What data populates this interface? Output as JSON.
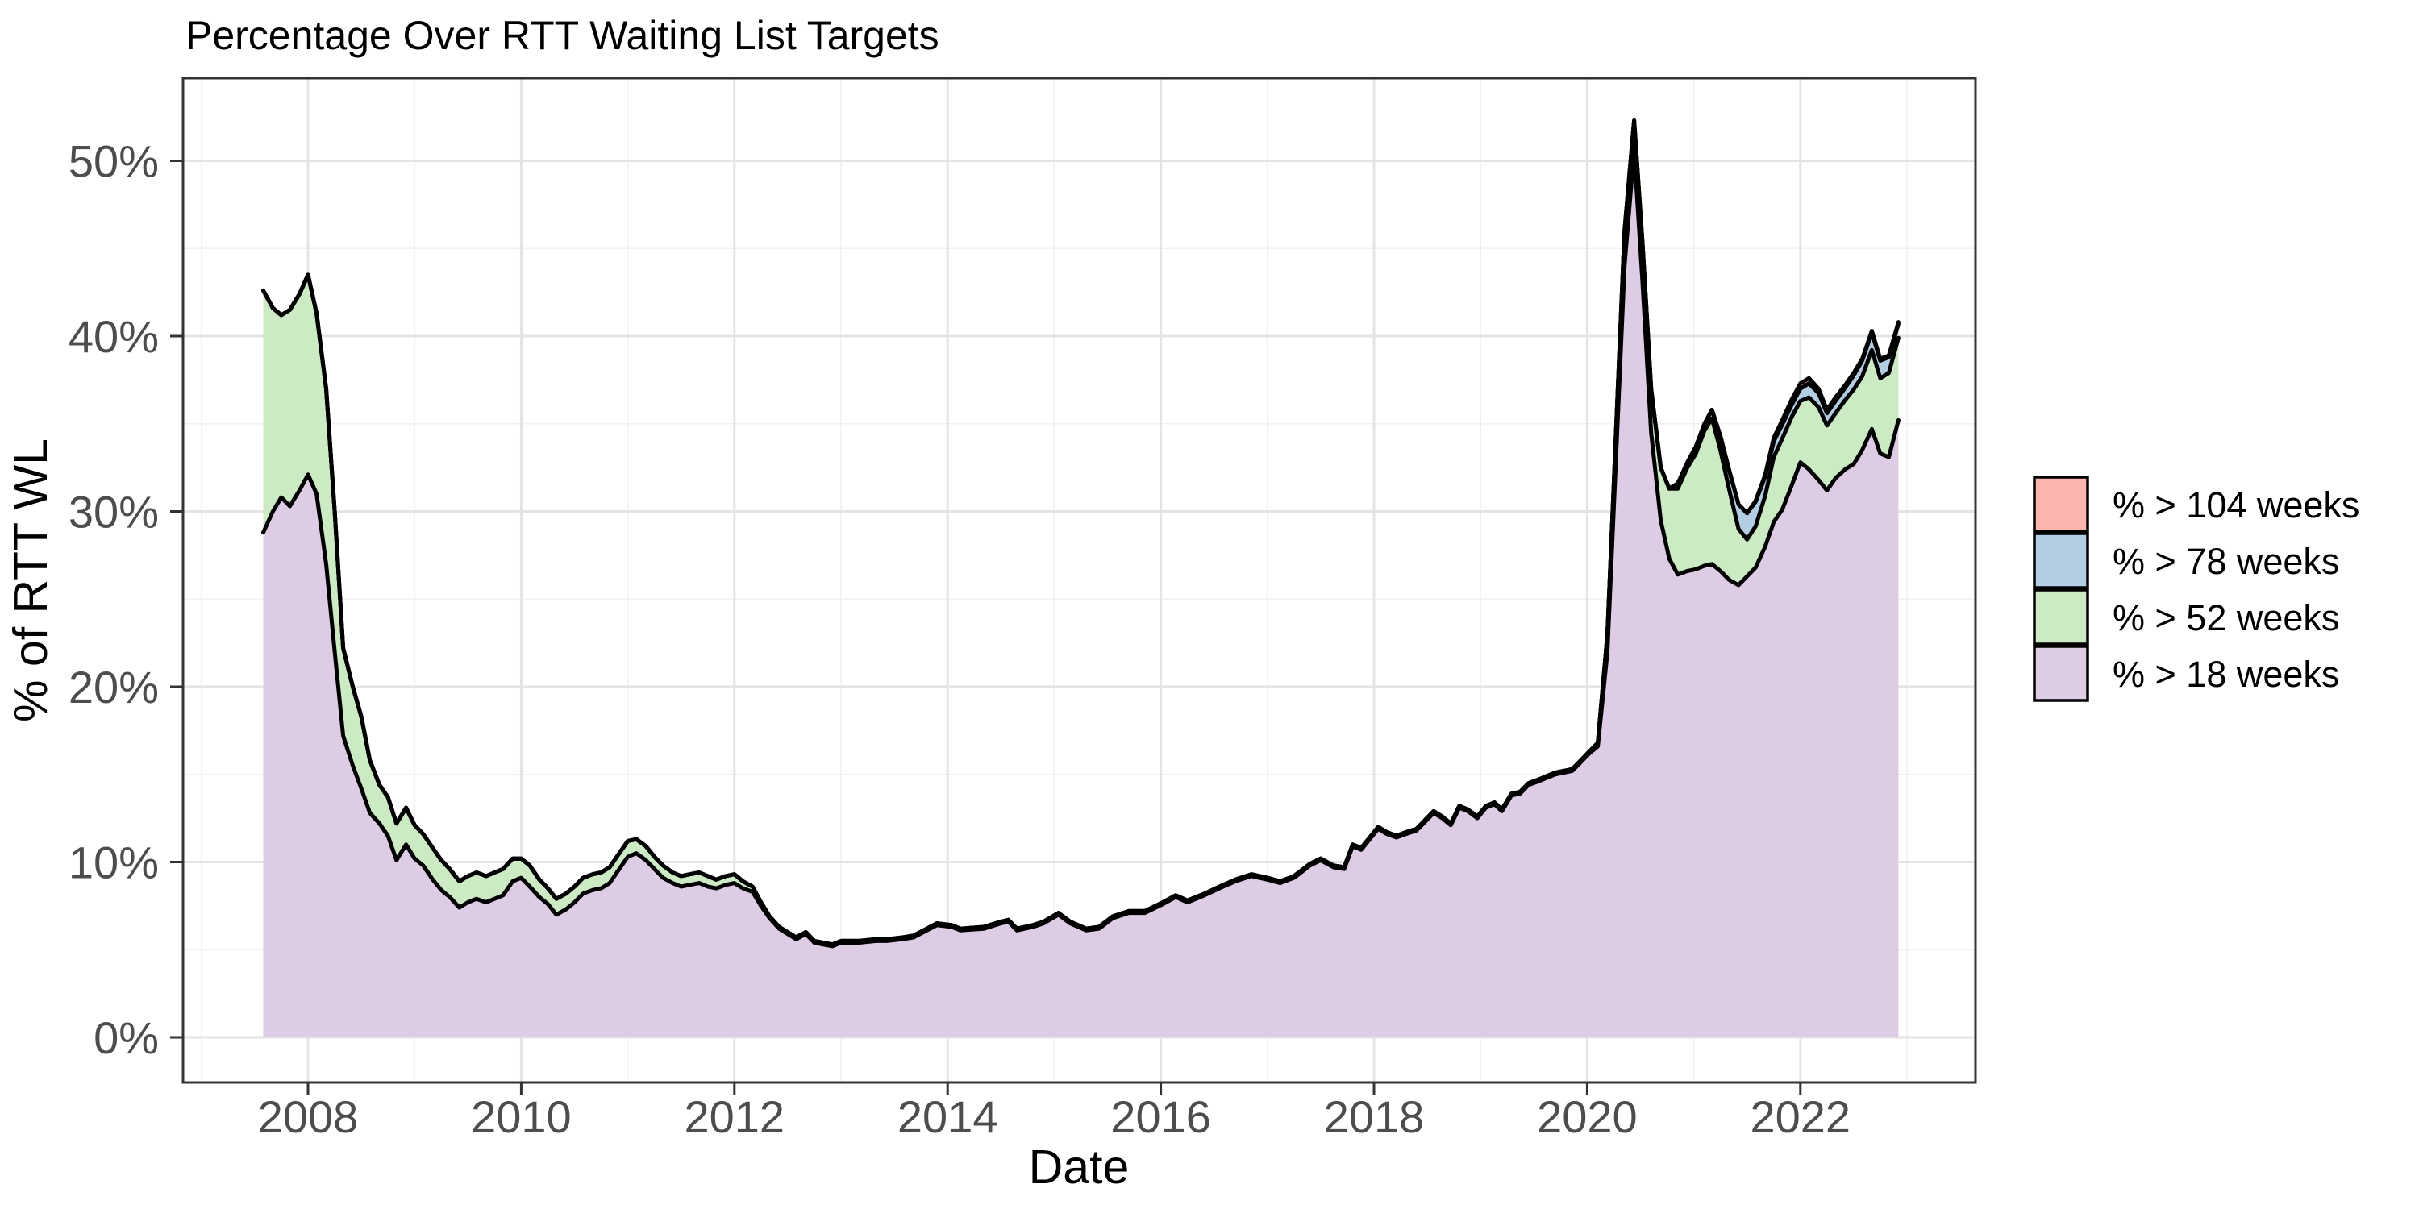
{
  "chart_data": {
    "type": "area",
    "stacked": true,
    "title": "Percentage Over RTT Waiting List Targets",
    "xlabel": "Date",
    "ylabel": "% of RTT WL",
    "x_axis": {
      "ticks": [
        2008,
        2010,
        2012,
        2014,
        2016,
        2018,
        2020,
        2022
      ],
      "minor_ticks": [
        2007,
        2009,
        2011,
        2013,
        2015,
        2017,
        2019,
        2021,
        2023
      ],
      "range": [
        2006.8,
        2023.6
      ]
    },
    "y_axis": {
      "ticks": [
        0,
        10,
        20,
        30,
        40,
        50
      ],
      "tick_labels": [
        "0%",
        "10%",
        "20%",
        "30%",
        "40%",
        "50%"
      ],
      "minor_ticks": [
        5,
        15,
        25,
        35,
        45
      ],
      "range": [
        0,
        54.7
      ],
      "unit": "%"
    },
    "grid": {
      "major": true,
      "minor": true
    },
    "legend_position": "right",
    "colors": {
      "outline": "#000000",
      "panel_border": "#333333",
      "grid_major": "#e4e4e4",
      "grid_minor": "#f1f1f1",
      "tick_text": "#4d4d4d",
      "title_text": "#000000"
    },
    "x": [
      2007.58,
      2007.67,
      2007.75,
      2007.83,
      2007.92,
      2008.0,
      2008.08,
      2008.17,
      2008.25,
      2008.33,
      2008.42,
      2008.5,
      2008.58,
      2008.67,
      2008.75,
      2008.83,
      2008.92,
      2009.0,
      2009.08,
      2009.17,
      2009.25,
      2009.33,
      2009.42,
      2009.5,
      2009.58,
      2009.67,
      2009.75,
      2009.83,
      2009.92,
      2010.0,
      2010.08,
      2010.17,
      2010.25,
      2010.33,
      2010.42,
      2010.5,
      2010.58,
      2010.67,
      2010.75,
      2010.83,
      2010.92,
      2011.0,
      2011.08,
      2011.17,
      2011.25,
      2011.33,
      2011.42,
      2011.5,
      2011.58,
      2011.67,
      2011.75,
      2011.83,
      2011.92,
      2012.0,
      2012.08,
      2012.17,
      2012.25,
      2012.33,
      2012.42,
      2012.5,
      2012.58,
      2012.67,
      2012.75,
      2012.83,
      2012.92,
      2013.0,
      2013.17,
      2013.33,
      2013.43,
      2013.58,
      2013.68,
      2013.9,
      2014.04,
      2014.12,
      2014.34,
      2014.5,
      2014.57,
      2014.65,
      2014.8,
      2014.9,
      2015.04,
      2015.15,
      2015.3,
      2015.42,
      2015.55,
      2015.7,
      2015.85,
      2016.02,
      2016.14,
      2016.25,
      2016.41,
      2016.55,
      2016.7,
      2016.85,
      2017.0,
      2017.12,
      2017.25,
      2017.4,
      2017.5,
      2017.62,
      2017.72,
      2017.8,
      2017.88,
      2017.96,
      2018.04,
      2018.12,
      2018.21,
      2018.3,
      2018.4,
      2018.56,
      2018.64,
      2018.72,
      2018.8,
      2018.88,
      2018.97,
      2019.05,
      2019.13,
      2019.2,
      2019.29,
      2019.37,
      2019.45,
      2019.54,
      2019.62,
      2019.7,
      2019.78,
      2019.86,
      2019.94,
      2020.02,
      2020.1,
      2020.19,
      2020.27,
      2020.35,
      2020.44,
      2020.52,
      2020.6,
      2020.69,
      2020.77,
      2020.85,
      2020.94,
      2021.02,
      2021.1,
      2021.17,
      2021.25,
      2021.33,
      2021.42,
      2021.5,
      2021.58,
      2021.67,
      2021.75,
      2021.83,
      2021.92,
      2022.0,
      2022.08,
      2022.17,
      2022.25,
      2022.33,
      2022.42,
      2022.5,
      2022.58,
      2022.67,
      2022.75,
      2022.83,
      2022.92
    ],
    "series": [
      {
        "name": "% > 18 weeks",
        "color": "#DECBE4",
        "values": [
          28.8,
          30.0,
          30.8,
          30.3,
          31.2,
          32.1,
          31.0,
          27.0,
          22.0,
          17.2,
          15.5,
          14.2,
          12.8,
          12.2,
          11.5,
          10.1,
          11.0,
          10.2,
          9.8,
          9.0,
          8.4,
          8.0,
          7.4,
          7.7,
          7.9,
          7.7,
          7.9,
          8.1,
          8.9,
          9.1,
          8.6,
          8.0,
          7.6,
          7.0,
          7.3,
          7.7,
          8.2,
          8.4,
          8.5,
          8.8,
          9.6,
          10.3,
          10.5,
          10.1,
          9.6,
          9.1,
          8.8,
          8.6,
          8.7,
          8.8,
          8.6,
          8.5,
          8.7,
          8.8,
          8.5,
          8.3,
          7.5,
          6.8,
          6.2,
          5.9,
          5.6,
          5.9,
          5.4,
          5.3,
          5.2,
          5.4,
          5.4,
          5.5,
          5.5,
          5.6,
          5.7,
          6.4,
          6.3,
          6.1,
          6.2,
          6.5,
          6.6,
          6.1,
          6.3,
          6.5,
          7.0,
          6.5,
          6.1,
          6.2,
          6.8,
          7.1,
          7.1,
          7.6,
          8.0,
          7.7,
          8.1,
          8.5,
          8.9,
          9.2,
          9.0,
          8.8,
          9.1,
          9.8,
          10.1,
          9.7,
          9.6,
          10.9,
          10.7,
          11.3,
          11.9,
          11.6,
          11.4,
          11.6,
          11.8,
          12.8,
          12.5,
          12.1,
          13.1,
          12.9,
          12.5,
          13.1,
          13.3,
          12.9,
          13.8,
          13.9,
          14.4,
          14.6,
          14.8,
          15.0,
          15.1,
          15.2,
          15.7,
          16.2,
          16.6,
          22.0,
          33.0,
          44.0,
          50.6,
          43.0,
          34.5,
          29.5,
          27.3,
          26.4,
          26.6,
          26.7,
          26.9,
          27.0,
          26.6,
          26.1,
          25.8,
          26.3,
          26.8,
          28.0,
          29.4,
          30.1,
          31.5,
          32.8,
          32.4,
          31.8,
          31.2,
          31.9,
          32.4,
          32.7,
          33.5,
          34.7,
          33.3,
          33.1,
          35.2
        ]
      },
      {
        "name": "% > 52 weeks",
        "color": "#CCEBC5",
        "values": [
          13.8,
          11.6,
          10.4,
          11.2,
          11.2,
          11.4,
          10.3,
          10.0,
          8.0,
          5.0,
          4.5,
          4.1,
          3.0,
          2.2,
          2.2,
          2.1,
          2.1,
          1.9,
          1.8,
          1.8,
          1.7,
          1.6,
          1.5,
          1.5,
          1.5,
          1.5,
          1.5,
          1.5,
          1.3,
          1.1,
          1.2,
          1.0,
          0.9,
          0.9,
          0.9,
          0.9,
          0.9,
          0.9,
          0.9,
          0.9,
          0.9,
          0.9,
          0.8,
          0.8,
          0.7,
          0.7,
          0.6,
          0.6,
          0.6,
          0.6,
          0.6,
          0.5,
          0.5,
          0.5,
          0.4,
          0.3,
          0.2,
          0.1,
          0.1,
          0.1,
          0.1,
          0.1,
          0.1,
          0.1,
          0.1,
          0.1,
          0.1,
          0.1,
          0.1,
          0.1,
          0.1,
          0.1,
          0.1,
          0.1,
          0.1,
          0.1,
          0.1,
          0.1,
          0.1,
          0.1,
          0.1,
          0.1,
          0.1,
          0.1,
          0.1,
          0.1,
          0.1,
          0.1,
          0.1,
          0.1,
          0.1,
          0.1,
          0.1,
          0.1,
          0.1,
          0.1,
          0.1,
          0.1,
          0.1,
          0.1,
          0.1,
          0.1,
          0.1,
          0.1,
          0.1,
          0.1,
          0.1,
          0.1,
          0.1,
          0.1,
          0.1,
          0.1,
          0.1,
          0.1,
          0.1,
          0.1,
          0.1,
          0.1,
          0.1,
          0.1,
          0.1,
          0.1,
          0.1,
          0.1,
          0.1,
          0.1,
          0.1,
          0.1,
          0.2,
          1.0,
          1.5,
          2.0,
          1.7,
          2.2,
          2.5,
          3.0,
          4.0,
          4.9,
          5.9,
          6.6,
          7.7,
          8.3,
          6.9,
          5.2,
          3.2,
          2.1,
          2.35,
          2.9,
          3.7,
          4.05,
          3.9,
          3.5,
          4.1,
          4.15,
          3.7,
          3.7,
          3.95,
          4.25,
          4.2,
          4.5,
          4.3,
          4.8,
          4.7
        ]
      },
      {
        "name": "% > 78 weeks",
        "color": "#B3CDE3",
        "values": [
          0,
          0,
          0,
          0,
          0,
          0,
          0,
          0,
          0,
          0,
          0,
          0,
          0,
          0,
          0,
          0,
          0,
          0,
          0,
          0,
          0,
          0,
          0,
          0,
          0,
          0,
          0,
          0,
          0,
          0,
          0,
          0,
          0,
          0,
          0,
          0,
          0,
          0,
          0,
          0,
          0,
          0,
          0,
          0,
          0,
          0,
          0,
          0,
          0,
          0,
          0,
          0,
          0,
          0,
          0,
          0,
          0,
          0,
          0,
          0,
          0,
          0,
          0,
          0,
          0,
          0,
          0,
          0,
          0,
          0,
          0,
          0,
          0,
          0,
          0,
          0,
          0,
          0,
          0,
          0,
          0,
          0,
          0,
          0,
          0,
          0,
          0,
          0,
          0,
          0,
          0,
          0,
          0,
          0,
          0,
          0,
          0,
          0,
          0,
          0,
          0,
          0,
          0,
          0,
          0,
          0,
          0,
          0,
          0,
          0,
          0,
          0,
          0,
          0,
          0,
          0,
          0,
          0,
          0,
          0,
          0,
          0,
          0,
          0,
          0,
          0,
          0,
          0,
          0,
          0,
          0,
          0,
          0,
          0,
          0,
          0,
          0,
          0.3,
          0.3,
          0.4,
          0.4,
          0.5,
          0.8,
          1.1,
          1.4,
          1.5,
          1.4,
          1.1,
          0.9,
          0.8,
          0.7,
          0.7,
          0.8,
          0.8,
          0.7,
          0.7,
          0.7,
          0.8,
          0.9,
          1.0,
          1.0,
          0.9,
          0.8
        ]
      },
      {
        "name": "% > 104 weeks",
        "color": "#FBB4AE",
        "values": [
          0,
          0,
          0,
          0,
          0,
          0,
          0,
          0,
          0,
          0,
          0,
          0,
          0,
          0,
          0,
          0,
          0,
          0,
          0,
          0,
          0,
          0,
          0,
          0,
          0,
          0,
          0,
          0,
          0,
          0,
          0,
          0,
          0,
          0,
          0,
          0,
          0,
          0,
          0,
          0,
          0,
          0,
          0,
          0,
          0,
          0,
          0,
          0,
          0,
          0,
          0,
          0,
          0,
          0,
          0,
          0,
          0,
          0,
          0,
          0,
          0,
          0,
          0,
          0,
          0,
          0,
          0,
          0,
          0,
          0,
          0,
          0,
          0,
          0,
          0,
          0,
          0,
          0,
          0,
          0,
          0,
          0,
          0,
          0,
          0,
          0,
          0,
          0,
          0,
          0,
          0,
          0,
          0,
          0,
          0,
          0,
          0,
          0,
          0,
          0,
          0,
          0,
          0,
          0,
          0,
          0,
          0,
          0,
          0,
          0,
          0,
          0,
          0,
          0,
          0,
          0,
          0,
          0,
          0,
          0,
          0,
          0,
          0,
          0,
          0,
          0,
          0,
          0,
          0,
          0,
          0,
          0,
          0,
          0,
          0,
          0,
          0,
          0,
          0,
          0,
          0,
          0,
          0,
          0,
          0,
          0,
          0.05,
          0.1,
          0.2,
          0.25,
          0.3,
          0.3,
          0.3,
          0.25,
          0.2,
          0.2,
          0.15,
          0.15,
          0.1,
          0.1,
          0.1,
          0.1,
          0.1
        ]
      }
    ],
    "legend_items": [
      {
        "label": "% > 104 weeks",
        "color": "#FBB4AE"
      },
      {
        "label": "% > 78 weeks",
        "color": "#B3CDE3"
      },
      {
        "label": "% > 52 weeks",
        "color": "#CCEBC5"
      },
      {
        "label": "% > 18 weeks",
        "color": "#DECBE4"
      }
    ]
  }
}
